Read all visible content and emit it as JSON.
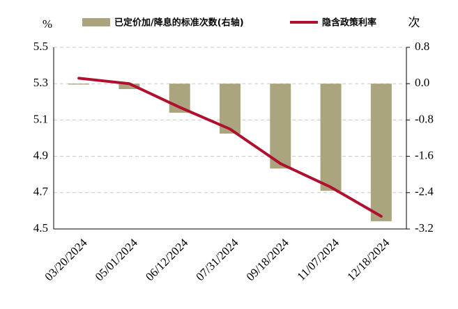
{
  "chart_data": {
    "type": "bar_line",
    "y_label": "%",
    "y2_label": "次",
    "categories": [
      "03/20/2024",
      "05/01/2024",
      "06/12/2024",
      "07/31/2024",
      "09/18/2024",
      "11/07/2024",
      "12/18/2024"
    ],
    "series": [
      {
        "name": "已定价加/降息的标准次数(右轴)",
        "type": "bar",
        "axis": "y2",
        "color": "#aba57f",
        "values": [
          -0.02,
          -0.12,
          -0.64,
          -1.1,
          -1.87,
          -2.36,
          -3.03
        ]
      },
      {
        "name": "隐含政策利率",
        "type": "line",
        "color": "#b0102e",
        "values": [
          5.33,
          5.3,
          5.17,
          5.05,
          4.86,
          4.73,
          4.57
        ]
      }
    ],
    "ylim": [
      4.5,
      5.5
    ],
    "yticks": [
      4.5,
      4.7,
      4.9,
      5.1,
      5.3,
      5.5
    ],
    "y2lim": [
      -3.2,
      0.8
    ],
    "y2ticks": [
      -3.2,
      -2.4,
      -1.6,
      -0.8,
      {
        "value": 0,
        "label": "0.0"
      },
      0.8
    ],
    "grid": true
  }
}
